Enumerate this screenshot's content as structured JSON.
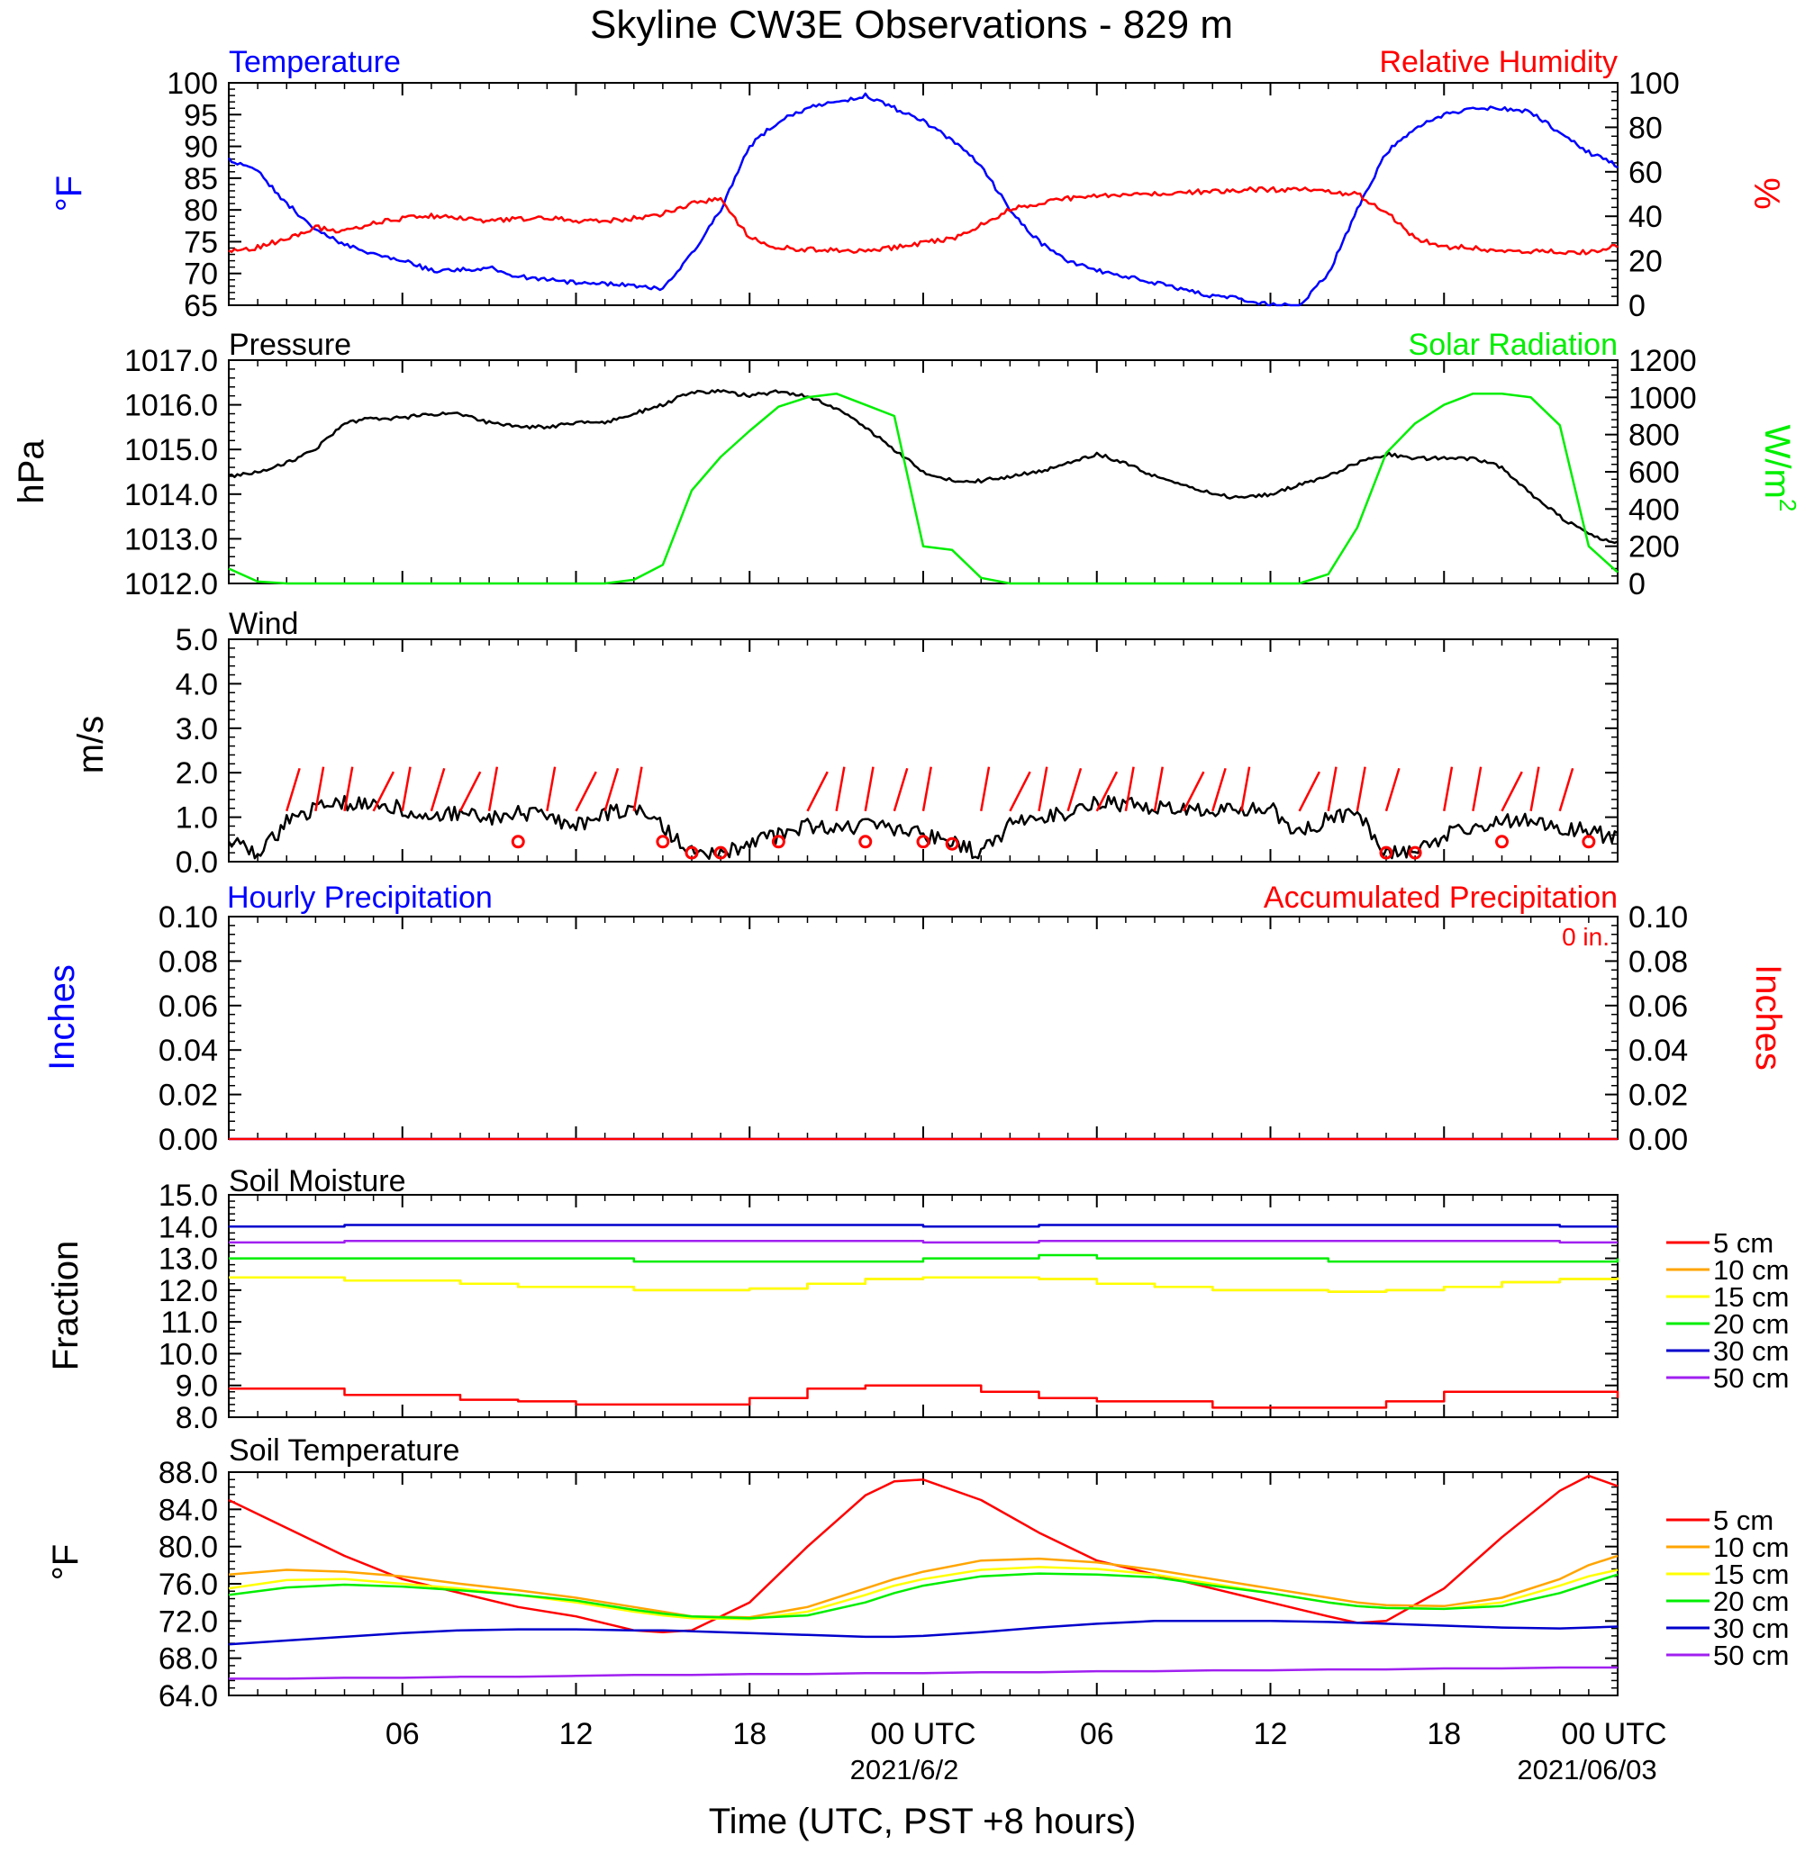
{
  "title": "Skyline CW3E Observations - 829 m",
  "x_axis": {
    "label": "Time (UTC, PST +8 hours)",
    "ticks": [
      "06",
      "12",
      "18",
      "00 UTC",
      "06",
      "12",
      "18",
      "00 UTC"
    ],
    "dates": [
      "2021/6/2",
      "2021/06/03"
    ]
  },
  "chart_data": [
    {
      "type": "line",
      "panel": "temperature-humidity",
      "title_left": "Temperature",
      "title_right": "Relative Humidity",
      "ylabel_left": "°F",
      "ylabel_right": "%",
      "ylim_left": [
        65,
        100
      ],
      "ylim_right": [
        0,
        100
      ],
      "yticks_left": [
        "100",
        "95",
        "90",
        "85",
        "80",
        "75",
        "70",
        "65"
      ],
      "yticks_right": [
        "100",
        "80",
        "60",
        "40",
        "20",
        "0"
      ],
      "x": [
        0,
        1,
        2,
        3,
        4,
        5,
        6,
        7,
        8,
        9,
        10,
        11,
        12,
        13,
        14,
        15,
        16,
        17,
        18,
        19,
        20,
        21,
        22,
        23,
        24,
        25,
        26,
        27,
        28,
        29,
        30,
        31,
        32,
        33,
        34,
        35,
        36,
        37,
        38,
        39,
        40,
        41,
        42,
        43,
        44,
        45,
        46,
        47,
        48
      ],
      "series": [
        {
          "name": "Temperature",
          "color": "#0000ff",
          "axis": "left",
          "values": [
            88,
            86,
            81,
            77,
            74.5,
            73,
            72,
            70.5,
            70.5,
            71,
            69.5,
            69,
            68.5,
            68.5,
            68,
            67.5,
            73,
            80,
            90,
            94,
            96,
            97,
            98,
            96,
            94,
            91,
            87,
            80,
            75,
            72,
            70.5,
            69.5,
            68.5,
            67.5,
            66.5,
            66,
            65,
            65,
            70,
            80,
            89,
            93,
            95,
            96,
            96,
            95.5,
            92,
            89,
            87
          ]
        },
        {
          "name": "Relative Humidity",
          "color": "#ff0000",
          "axis": "right",
          "values": [
            24,
            26,
            30,
            35,
            33,
            37,
            39,
            40,
            39,
            38,
            39,
            39,
            38,
            38,
            39,
            41,
            46,
            48,
            30,
            26,
            25,
            25,
            24,
            26,
            28,
            30,
            36,
            43,
            46,
            48,
            49,
            50,
            50,
            51,
            51,
            52,
            52,
            52,
            51,
            50,
            42,
            30,
            26,
            26,
            24,
            24,
            24,
            24,
            27
          ]
        }
      ]
    },
    {
      "type": "line",
      "panel": "pressure-solar",
      "title_left": "Pressure",
      "title_right": "Solar Radiation",
      "ylabel_left": "hPa",
      "ylabel_right": "W/m",
      "ylabel_right_sup": "2",
      "ylim_left": [
        1012,
        1017
      ],
      "ylim_right": [
        0,
        1200
      ],
      "yticks_left": [
        "1017.0",
        "1016.0",
        "1015.0",
        "1014.0",
        "1013.0",
        "1012.0"
      ],
      "yticks_right": [
        "1200",
        "1000",
        "800",
        "600",
        "400",
        "200",
        "0"
      ],
      "x": [
        0,
        1,
        2,
        3,
        4,
        5,
        6,
        7,
        8,
        9,
        10,
        11,
        12,
        13,
        14,
        15,
        16,
        17,
        18,
        19,
        20,
        21,
        22,
        23,
        24,
        25,
        26,
        27,
        28,
        29,
        30,
        31,
        32,
        33,
        34,
        35,
        36,
        37,
        38,
        39,
        40,
        41,
        42,
        43,
        44,
        45,
        46,
        47,
        48
      ],
      "series": [
        {
          "name": "Pressure",
          "color": "#000000",
          "axis": "left",
          "values": [
            1014.4,
            1014.5,
            1014.7,
            1015.0,
            1015.6,
            1015.7,
            1015.7,
            1015.8,
            1015.8,
            1015.6,
            1015.5,
            1015.5,
            1015.6,
            1015.6,
            1015.8,
            1016.0,
            1016.3,
            1016.3,
            1016.2,
            1016.3,
            1016.2,
            1015.9,
            1015.5,
            1015.0,
            1014.5,
            1014.3,
            1014.3,
            1014.4,
            1014.5,
            1014.7,
            1014.9,
            1014.7,
            1014.4,
            1014.2,
            1014.0,
            1013.9,
            1014.0,
            1014.2,
            1014.4,
            1014.7,
            1014.9,
            1014.8,
            1014.8,
            1014.8,
            1014.6,
            1014.0,
            1013.5,
            1013.1,
            1012.9
          ]
        },
        {
          "name": "Solar Radiation",
          "color": "#00ee00",
          "axis": "right",
          "values": [
            80,
            10,
            0,
            0,
            0,
            0,
            0,
            0,
            0,
            0,
            0,
            0,
            0,
            0,
            20,
            100,
            500,
            680,
            820,
            950,
            1000,
            1020,
            960,
            900,
            200,
            180,
            30,
            0,
            0,
            0,
            0,
            0,
            0,
            0,
            0,
            0,
            0,
            0,
            50,
            300,
            700,
            860,
            960,
            1020,
            1020,
            1000,
            850,
            200,
            60
          ]
        }
      ]
    },
    {
      "type": "line",
      "panel": "wind",
      "title_left": "Wind",
      "ylabel_left": "m/s",
      "ylim_left": [
        0,
        5
      ],
      "yticks_left": [
        "5.0",
        "4.0",
        "3.0",
        "2.0",
        "1.0",
        "0.0"
      ],
      "x": [
        0,
        1,
        2,
        3,
        4,
        5,
        6,
        7,
        8,
        9,
        10,
        11,
        12,
        13,
        14,
        15,
        16,
        17,
        18,
        19,
        20,
        21,
        22,
        23,
        24,
        25,
        26,
        27,
        28,
        29,
        30,
        31,
        32,
        33,
        34,
        35,
        36,
        37,
        38,
        39,
        40,
        41,
        42,
        43,
        44,
        45,
        46,
        47,
        48
      ],
      "series": [
        {
          "name": "Wind",
          "color": "#000000",
          "axis": "left",
          "values": [
            0.5,
            0.1,
            0.9,
            1.2,
            1.3,
            1.3,
            1.2,
            1.0,
            1.1,
            1.0,
            1.1,
            1.0,
            0.8,
            1.1,
            1.2,
            0.8,
            0.2,
            0.2,
            0.4,
            0.6,
            0.8,
            0.8,
            0.8,
            0.7,
            0.6,
            0.4,
            0.2,
            0.8,
            1.0,
            1.1,
            1.3,
            1.3,
            1.2,
            1.2,
            1.2,
            1.2,
            1.2,
            0.6,
            1.0,
            1.1,
            0.2,
            0.2,
            0.6,
            0.8,
            0.9,
            0.9,
            0.8,
            0.7,
            0.5
          ]
        }
      ],
      "barb_times": [
        2,
        3,
        4,
        5,
        6,
        7,
        8,
        9,
        11,
        12,
        13,
        14,
        20,
        21,
        22,
        23,
        24,
        26,
        27,
        28,
        29,
        30,
        31,
        32,
        33,
        34,
        35,
        37,
        38,
        39,
        40,
        42,
        43,
        44,
        45,
        46
      ],
      "calm_times": [
        10,
        15,
        16,
        17,
        19,
        22,
        24,
        25,
        40,
        41,
        44,
        47
      ]
    },
    {
      "type": "line",
      "panel": "precipitation",
      "title_left": "Hourly Precipitation",
      "title_right": "Accumulated Precipitation",
      "annotation": "0 in.",
      "ylabel_left": "Inches",
      "ylabel_right": "Inches",
      "ylim_left": [
        0,
        0.1
      ],
      "ylim_right": [
        0,
        0.1
      ],
      "yticks_left": [
        "0.10",
        "0.08",
        "0.06",
        "0.04",
        "0.02",
        "0.00"
      ],
      "yticks_right": [
        "0.10",
        "0.08",
        "0.06",
        "0.04",
        "0.02",
        "0.00"
      ],
      "x": [
        0,
        48
      ],
      "series": [
        {
          "name": "Hourly Precipitation",
          "color": "#0000ff",
          "axis": "left",
          "values": [
            0,
            0
          ]
        },
        {
          "name": "Accumulated Precipitation",
          "color": "#ff0000",
          "axis": "right",
          "values": [
            0,
            0
          ]
        }
      ]
    },
    {
      "type": "line",
      "panel": "soil-moisture",
      "title_left": "Soil Moisture",
      "ylabel_left": "Fraction",
      "ylim_left": [
        8,
        15
      ],
      "yticks_left": [
        "15.0",
        "14.0",
        "13.0",
        "12.0",
        "11.0",
        "10.0",
        "9.0",
        "8.0"
      ],
      "x": [
        0,
        4,
        8,
        10,
        12,
        14,
        16,
        18,
        20,
        22,
        24,
        26,
        28,
        30,
        32,
        34,
        36,
        38,
        40,
        42,
        44,
        46,
        48
      ],
      "series": [
        {
          "name": "5 cm",
          "color": "#ff0000",
          "values": [
            8.9,
            8.7,
            8.55,
            8.5,
            8.4,
            8.4,
            8.4,
            8.6,
            8.9,
            9.0,
            9.0,
            8.8,
            8.6,
            8.5,
            8.5,
            8.3,
            8.3,
            8.3,
            8.5,
            8.8,
            8.8,
            8.8,
            8.6
          ]
        },
        {
          "name": "10 cm",
          "color": "#ffa500",
          "values": [
            12.4,
            12.3,
            12.2,
            12.1,
            12.1,
            12.0,
            12.0,
            12.05,
            12.2,
            12.35,
            12.4,
            12.4,
            12.35,
            12.2,
            12.1,
            12.0,
            12.0,
            11.95,
            12.0,
            12.1,
            12.25,
            12.35,
            12.4
          ]
        },
        {
          "name": "15 cm",
          "color": "#ffff00",
          "values": [
            12.4,
            12.3,
            12.2,
            12.1,
            12.1,
            12.0,
            12.0,
            12.05,
            12.2,
            12.35,
            12.4,
            12.4,
            12.35,
            12.2,
            12.1,
            12.0,
            12.0,
            11.95,
            12.0,
            12.1,
            12.25,
            12.35,
            12.4
          ]
        },
        {
          "name": "20 cm",
          "color": "#00ee00",
          "values": [
            13.0,
            13.0,
            13.0,
            13.0,
            13.0,
            12.9,
            12.9,
            12.9,
            12.9,
            12.9,
            13.0,
            13.0,
            13.1,
            13.0,
            13.0,
            13.0,
            13.0,
            12.9,
            12.9,
            12.9,
            12.9,
            12.9,
            13.0
          ]
        },
        {
          "name": "30 cm",
          "color": "#0000cc",
          "values": [
            14.0,
            14.05,
            14.05,
            14.05,
            14.05,
            14.05,
            14.05,
            14.05,
            14.05,
            14.05,
            14.0,
            14.0,
            14.05,
            14.05,
            14.05,
            14.05,
            14.05,
            14.05,
            14.05,
            14.05,
            14.05,
            14.0,
            14.0
          ]
        },
        {
          "name": "50 cm",
          "color": "#a020f0",
          "values": [
            13.5,
            13.55,
            13.55,
            13.55,
            13.55,
            13.55,
            13.55,
            13.55,
            13.55,
            13.55,
            13.5,
            13.5,
            13.55,
            13.55,
            13.55,
            13.55,
            13.55,
            13.55,
            13.55,
            13.55,
            13.55,
            13.5,
            13.5
          ]
        }
      ]
    },
    {
      "type": "line",
      "panel": "soil-temperature",
      "title_left": "Soil Temperature",
      "ylabel_left": "°F",
      "ylim_left": [
        64,
        88
      ],
      "yticks_left": [
        "88.0",
        "84.0",
        "80.0",
        "76.0",
        "72.0",
        "68.0",
        "64.0"
      ],
      "x": [
        0,
        2,
        4,
        6,
        8,
        10,
        12,
        14,
        15,
        16,
        18,
        20,
        22,
        23,
        24,
        26,
        28,
        30,
        32,
        34,
        36,
        38,
        39,
        40,
        42,
        44,
        46,
        47,
        48
      ],
      "series": [
        {
          "name": "5 cm",
          "color": "#ff0000",
          "values": [
            85.0,
            82.0,
            79.0,
            76.5,
            75.0,
            73.5,
            72.5,
            71.0,
            70.8,
            71.0,
            74.0,
            80.0,
            85.5,
            87.0,
            87.2,
            85.0,
            81.5,
            78.5,
            77.0,
            75.5,
            74.0,
            72.5,
            71.8,
            72.0,
            75.5,
            81.0,
            86.0,
            87.6,
            86.5
          ]
        },
        {
          "name": "10 cm",
          "color": "#ffa500",
          "values": [
            77.0,
            77.5,
            77.3,
            76.8,
            76.0,
            75.3,
            74.5,
            73.5,
            73.0,
            72.5,
            72.4,
            73.5,
            75.5,
            76.5,
            77.3,
            78.5,
            78.7,
            78.3,
            77.5,
            76.5,
            75.5,
            74.5,
            74.0,
            73.7,
            73.6,
            74.5,
            76.5,
            78.0,
            79.0
          ]
        },
        {
          "name": "15 cm",
          "color": "#ffff00",
          "values": [
            75.5,
            76.4,
            76.5,
            76.0,
            75.5,
            74.8,
            74.0,
            73.0,
            72.6,
            72.3,
            72.2,
            73.0,
            74.8,
            75.8,
            76.5,
            77.5,
            77.8,
            77.6,
            77.0,
            76.0,
            75.0,
            74.0,
            73.6,
            73.4,
            73.3,
            74.0,
            75.8,
            76.8,
            77.5
          ]
        },
        {
          "name": "20 cm",
          "color": "#00ee00",
          "values": [
            74.8,
            75.6,
            75.9,
            75.7,
            75.3,
            74.8,
            74.2,
            73.2,
            72.8,
            72.5,
            72.3,
            72.6,
            74.0,
            75.0,
            75.8,
            76.8,
            77.1,
            77.0,
            76.7,
            75.8,
            75.0,
            74.0,
            73.6,
            73.4,
            73.3,
            73.6,
            75.0,
            76.0,
            77.0
          ]
        },
        {
          "name": "30 cm",
          "color": "#0000cc",
          "values": [
            69.5,
            69.9,
            70.3,
            70.7,
            71.0,
            71.1,
            71.1,
            71.0,
            71.0,
            70.9,
            70.7,
            70.5,
            70.3,
            70.3,
            70.4,
            70.8,
            71.3,
            71.7,
            72.0,
            72.0,
            72.0,
            71.9,
            71.8,
            71.7,
            71.5,
            71.3,
            71.2,
            71.3,
            71.4
          ]
        },
        {
          "name": "50 cm",
          "color": "#a020f0",
          "values": [
            65.8,
            65.8,
            65.9,
            65.9,
            66.0,
            66.0,
            66.1,
            66.2,
            66.2,
            66.2,
            66.3,
            66.3,
            66.4,
            66.4,
            66.4,
            66.5,
            66.5,
            66.6,
            66.6,
            66.7,
            66.7,
            66.8,
            66.8,
            66.8,
            66.9,
            66.9,
            67.0,
            67.0,
            67.0
          ]
        }
      ]
    }
  ],
  "legend": [
    "5 cm",
    "10 cm",
    "15 cm",
    "20 cm",
    "30 cm",
    "50 cm"
  ],
  "legend_colors": [
    "#ff0000",
    "#ffa500",
    "#ffff00",
    "#00ee00",
    "#0000cc",
    "#a020f0"
  ]
}
